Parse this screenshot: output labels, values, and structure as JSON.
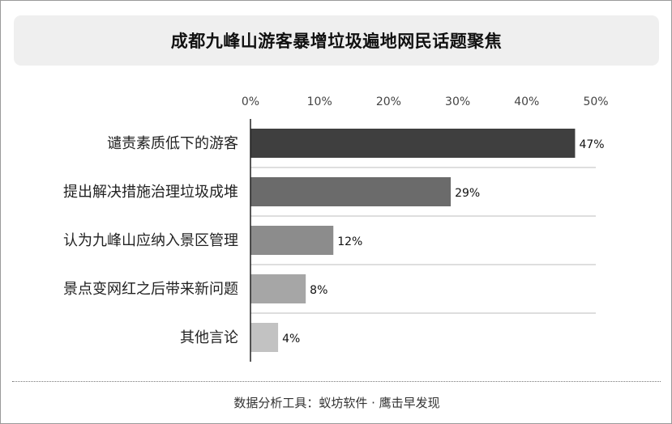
{
  "title": "成都九峰山游客暴增垃圾遍地网民话题聚焦",
  "footer": "数据分析工具：蚁坊软件 · 鹰击早发现",
  "chart_data": {
    "type": "bar",
    "orientation": "horizontal",
    "categories": [
      "谴责素质低下的游客",
      "提出解决措施治理垃圾成堆",
      "认为九峰山应纳入景区管理",
      "景点变网红之后带来新问题",
      "其他言论"
    ],
    "values": [
      47,
      29,
      12,
      8,
      4
    ],
    "value_labels": [
      "47%",
      "29%",
      "12%",
      "8%",
      "4%"
    ],
    "bar_colors": [
      "#3f3f3f",
      "#6b6b6b",
      "#8c8c8c",
      "#a6a6a6",
      "#c2c2c2"
    ],
    "xlim": [
      0,
      50
    ],
    "x_ticks": [
      0,
      10,
      20,
      30,
      40,
      50
    ],
    "x_tick_labels": [
      "0%",
      "10%",
      "20%",
      "30%",
      "40%",
      "50%"
    ],
    "x_axis_position": "top",
    "grid": "horizontal separators"
  }
}
